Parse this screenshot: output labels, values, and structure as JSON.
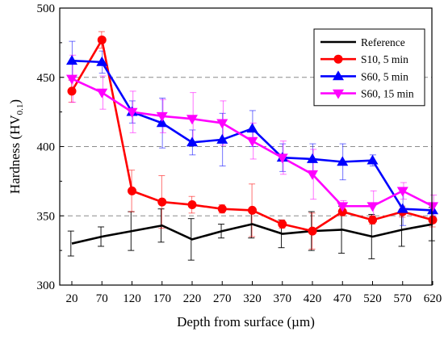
{
  "chart_data": {
    "type": "line",
    "xlabel": "Depth from surface (µm)",
    "ylabel_main": "Hardness (HV",
    "ylabel_sub": "0.1",
    "ylabel_close": ")",
    "categories": [
      "20",
      "70",
      "120",
      "170",
      "220",
      "270",
      "320",
      "370",
      "420",
      "470",
      "520",
      "570",
      "620"
    ],
    "ylim": [
      300,
      500
    ],
    "yticks": [
      300,
      350,
      400,
      450,
      500
    ],
    "grid": "horizontal dashed",
    "legend_position": "top-right",
    "series": [
      {
        "name": "Reference",
        "color": "#000000",
        "marker": "none",
        "values": [
          330,
          335,
          339,
          343,
          333,
          339,
          344,
          337,
          339,
          340,
          335,
          340,
          344
        ],
        "errors": [
          9,
          7,
          14,
          12,
          15,
          5,
          10,
          10,
          14,
          17,
          16,
          12,
          12
        ]
      },
      {
        "name": "S10, 5 min",
        "color": "#ff0000",
        "marker": "circle",
        "values": [
          440,
          477,
          368,
          360,
          358,
          355,
          354,
          344,
          339,
          353,
          347,
          353,
          347
        ],
        "errors": [
          8,
          6,
          15,
          19,
          6,
          3,
          19,
          3,
          13,
          3,
          3,
          4,
          5
        ]
      },
      {
        "name": "S60, 5 min",
        "color": "#0000ff",
        "marker": "triangle-up",
        "values": [
          462,
          461,
          425,
          417,
          403,
          405,
          413,
          392,
          391,
          389,
          390,
          355,
          354
        ],
        "errors": [
          14,
          8,
          8,
          18,
          9,
          19,
          13,
          10,
          11,
          13,
          4,
          12,
          4
        ]
      },
      {
        "name": "S60, 15 min",
        "color": "#ff00ff",
        "marker": "triangle-down",
        "values": [
          449,
          439,
          425,
          422,
          420,
          417,
          404,
          392,
          380,
          357,
          357,
          368,
          357
        ],
        "errors": [
          17,
          12,
          15,
          12,
          19,
          16,
          13,
          12,
          18,
          4,
          11,
          6,
          8
        ]
      }
    ]
  }
}
